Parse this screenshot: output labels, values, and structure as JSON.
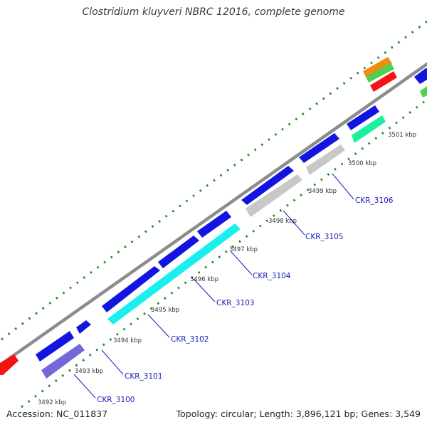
{
  "title": "Clostridium kluyveri NBRC 12016, complete genome",
  "footer": {
    "accession": "Accession: NC_011837",
    "summary": "Topology: circular; Length: 3,896,121 bp; Genes: 3,549"
  },
  "genome_map": {
    "topology": "circular",
    "colors": {
      "backbone": "#8c8c8c",
      "tick_marks": "#1e8c1e",
      "forward_genes": "#1414e0",
      "reverse_gene_cyan": "#19f0ee",
      "reverse_gene_gray": "#c8c8c8",
      "reverse_gene_violet": "#7468d8",
      "reverse_gene_mint": "#19f0a0",
      "gene_red": "#f01414",
      "gene_orange": "#f08c14",
      "gene_green": "#50d050",
      "label_color": "#1a1ab8"
    },
    "position_labels": [
      "3492 kbp",
      "3493 kbp",
      "3494 kbp",
      "3495 kbp",
      "3496 kbp",
      "3497 kbp",
      "3498 kbp",
      "3499 kbp",
      "3500 kbp",
      "3501 kbp"
    ],
    "gene_labels": [
      "CKR_3100",
      "CKR_3101",
      "CKR_3102",
      "CKR_3103",
      "CKR_3104",
      "CKR_3105",
      "CKR_3106"
    ]
  }
}
